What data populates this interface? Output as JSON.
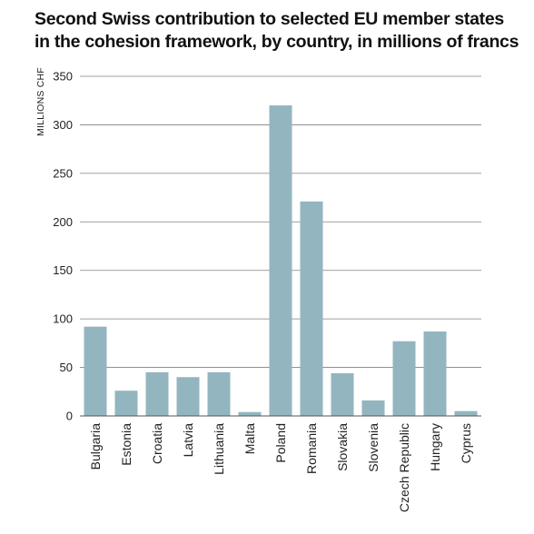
{
  "chart_data": {
    "type": "bar",
    "title_lines": [
      "Second Swiss contribution to selected EU member states",
      "in the cohesion framework, by country, in millions of francs"
    ],
    "ylabel": "MILLIONS CHF",
    "xlabel": "",
    "ylim": [
      0,
      350
    ],
    "yticks": [
      "0",
      "50",
      "100",
      "150",
      "200",
      "250",
      "300",
      "350"
    ],
    "categories": [
      "Bulgaria",
      "Estonia",
      "Croatia",
      "Latvia",
      "Lithuania",
      "Malta",
      "Poland",
      "Romania",
      "Slovakia",
      "Slovenia",
      "Czech Republic",
      "Hungary",
      "Cyprus"
    ],
    "values": [
      92,
      26,
      45,
      40,
      45,
      4,
      320,
      221,
      44,
      16,
      77,
      87,
      5
    ],
    "grid": true,
    "colors": {
      "bar": "#93b5bf",
      "grid": "#808080",
      "axis": "#555555",
      "text": "#111111"
    }
  }
}
